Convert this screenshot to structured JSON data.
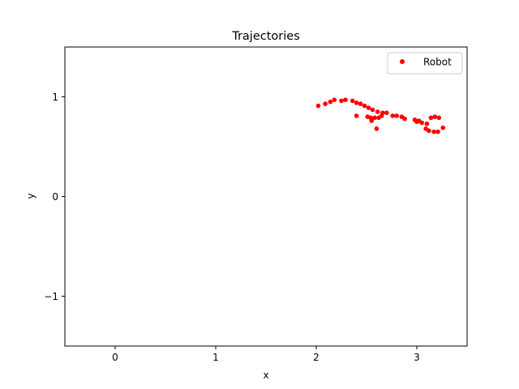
{
  "chart_data": {
    "type": "scatter",
    "title": "Trajectories",
    "xlabel": "x",
    "ylabel": "y",
    "xlim": [
      -0.5,
      3.5
    ],
    "ylim": [
      -1.5,
      1.5
    ],
    "xticks": [
      0,
      1,
      2,
      3
    ],
    "xtick_labels": [
      "0",
      "1",
      "2",
      "3"
    ],
    "yticks": [
      -1,
      0,
      1
    ],
    "ytick_labels": [
      "−1",
      "0",
      "1"
    ],
    "grid": false,
    "legend_position": "top-right",
    "series": [
      {
        "name": "Robot",
        "color": "#ff0000",
        "marker": "circle",
        "points": [
          [
            2.02,
            0.91
          ],
          [
            2.09,
            0.93
          ],
          [
            2.14,
            0.95
          ],
          [
            2.18,
            0.97
          ],
          [
            2.25,
            0.96
          ],
          [
            2.29,
            0.97
          ],
          [
            2.36,
            0.96
          ],
          [
            2.4,
            0.94
          ],
          [
            2.44,
            0.93
          ],
          [
            2.48,
            0.91
          ],
          [
            2.52,
            0.89
          ],
          [
            2.56,
            0.87
          ],
          [
            2.61,
            0.85
          ],
          [
            2.66,
            0.84
          ],
          [
            2.7,
            0.84
          ],
          [
            2.76,
            0.81
          ],
          [
            2.8,
            0.81
          ],
          [
            2.85,
            0.8
          ],
          [
            2.88,
            0.78
          ],
          [
            2.4,
            0.81
          ],
          [
            2.51,
            0.8
          ],
          [
            2.54,
            0.79
          ],
          [
            2.55,
            0.76
          ],
          [
            2.58,
            0.79
          ],
          [
            2.62,
            0.79
          ],
          [
            2.65,
            0.81
          ],
          [
            2.6,
            0.68
          ],
          [
            2.98,
            0.77
          ],
          [
            3.0,
            0.75
          ],
          [
            3.02,
            0.76
          ],
          [
            3.05,
            0.74
          ],
          [
            3.1,
            0.73
          ],
          [
            3.09,
            0.68
          ],
          [
            3.12,
            0.66
          ],
          [
            3.14,
            0.79
          ],
          [
            3.18,
            0.8
          ],
          [
            3.22,
            0.79
          ],
          [
            3.17,
            0.65
          ],
          [
            3.21,
            0.65
          ],
          [
            3.26,
            0.69
          ]
        ]
      }
    ]
  }
}
